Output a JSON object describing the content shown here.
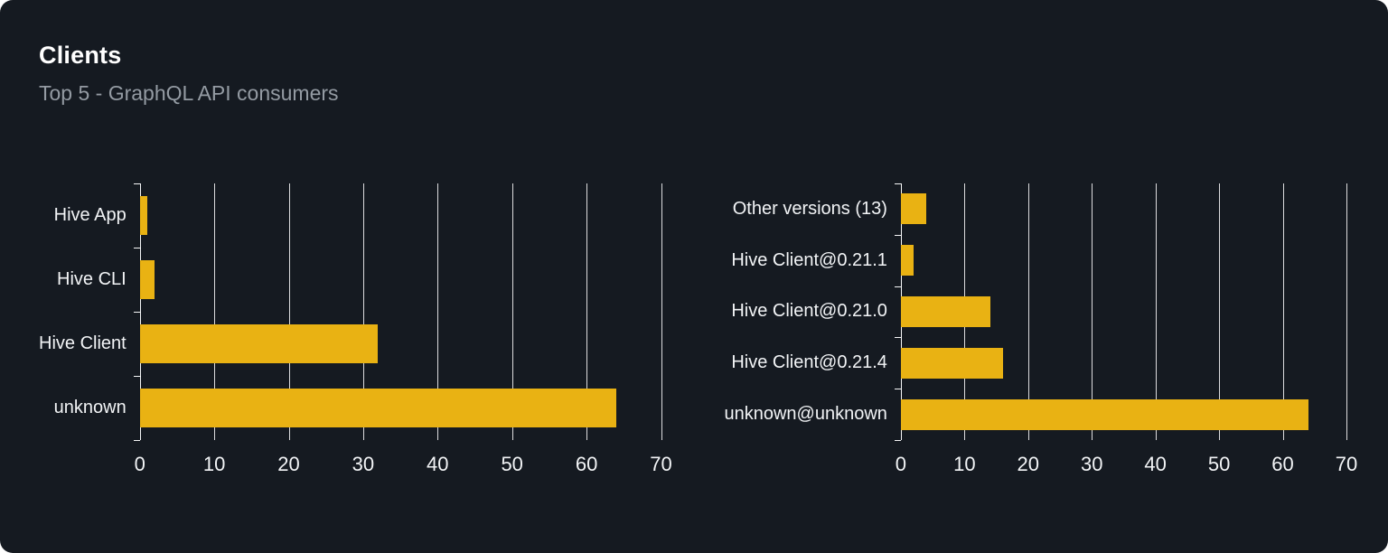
{
  "card": {
    "title": "Clients",
    "subtitle": "Top 5 - GraphQL API consumers"
  },
  "colors": {
    "background": "#151a21",
    "bar": "#e9b213",
    "grid": "#ffffff",
    "text": "#f2f4f6",
    "subtitle": "#949ba3"
  },
  "chart_data": [
    {
      "type": "bar",
      "orientation": "horizontal",
      "title": "",
      "categories": [
        "Hive App",
        "Hive CLI",
        "Hive Client",
        "unknown"
      ],
      "values": [
        1,
        2,
        32,
        64
      ],
      "xlim": [
        0,
        70
      ],
      "ticks": [
        0,
        10,
        20,
        30,
        40,
        50,
        60,
        70
      ],
      "grid": true,
      "legend": false
    },
    {
      "type": "bar",
      "orientation": "horizontal",
      "title": "",
      "categories": [
        "Other versions (13)",
        "Hive Client@0.21.1",
        "Hive Client@0.21.0",
        "Hive Client@0.21.4",
        "unknown@unknown"
      ],
      "values": [
        4,
        2,
        14,
        16,
        64
      ],
      "xlim": [
        0,
        70
      ],
      "ticks": [
        0,
        10,
        20,
        30,
        40,
        50,
        60,
        70
      ],
      "grid": true,
      "legend": false
    }
  ]
}
